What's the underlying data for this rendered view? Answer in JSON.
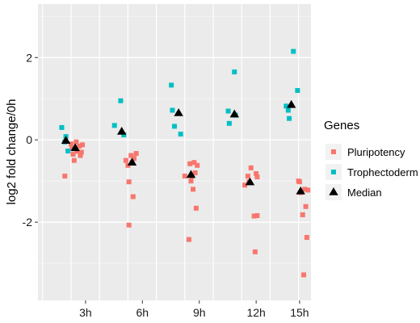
{
  "chart_data": {
    "type": "scatter",
    "ylabel": "log2 fold change/0h",
    "xlabel": "",
    "categories": [
      "3h",
      "6h",
      "9h",
      "12h",
      "15h"
    ],
    "x_tick_labels": [
      "3h",
      "6h",
      "9h",
      "12h",
      "15h"
    ],
    "y_ticks": [
      -2,
      0,
      2
    ],
    "y_tick_labels": [
      "-2",
      "0",
      "2"
    ],
    "ylim": [
      -3.9,
      3.3
    ],
    "xlim": [
      0.4,
      13.6
    ],
    "grid": true,
    "legend": {
      "title": "Genes",
      "position": "right",
      "entries": [
        {
          "label": "Pluripotency",
          "color": "#F8766D",
          "shape": "square"
        },
        {
          "label": "Trophectoderm",
          "color": "#00BFC4",
          "shape": "square"
        },
        {
          "label": "Median",
          "color": "#000000",
          "shape": "triangle"
        }
      ]
    },
    "series": [
      {
        "name": "Pluripotency",
        "color": "#F8766D",
        "shape": "square",
        "points": [
          {
            "x": 1.7,
            "y": -0.88
          },
          {
            "x": 2.0,
            "y": -0.1
          },
          {
            "x": 2.05,
            "y": -0.2
          },
          {
            "x": 2.1,
            "y": -0.35
          },
          {
            "x": 2.15,
            "y": -0.5
          },
          {
            "x": 2.25,
            "y": -0.05
          },
          {
            "x": 2.3,
            "y": -0.28
          },
          {
            "x": 2.4,
            "y": -0.15
          },
          {
            "x": 2.45,
            "y": -0.38
          },
          {
            "x": 2.5,
            "y": -0.3
          },
          {
            "x": 2.55,
            "y": -0.12
          },
          {
            "x": 4.65,
            "y": -0.5
          },
          {
            "x": 4.75,
            "y": -0.62
          },
          {
            "x": 4.8,
            "y": -1.02
          },
          {
            "x": 4.8,
            "y": -2.07
          },
          {
            "x": 4.9,
            "y": -0.38
          },
          {
            "x": 4.95,
            "y": -0.55
          },
          {
            "x": 5.0,
            "y": -1.38
          },
          {
            "x": 5.05,
            "y": -0.45
          },
          {
            "x": 5.15,
            "y": -0.33
          },
          {
            "x": 7.5,
            "y": -0.88
          },
          {
            "x": 7.7,
            "y": -2.42
          },
          {
            "x": 7.75,
            "y": -0.58
          },
          {
            "x": 7.8,
            "y": -1.0
          },
          {
            "x": 7.85,
            "y": -0.88
          },
          {
            "x": 7.9,
            "y": -1.2
          },
          {
            "x": 7.95,
            "y": -0.55
          },
          {
            "x": 8.0,
            "y": -0.8
          },
          {
            "x": 8.05,
            "y": -1.66
          },
          {
            "x": 8.1,
            "y": -0.62
          },
          {
            "x": 10.4,
            "y": -1.1
          },
          {
            "x": 10.55,
            "y": -0.88
          },
          {
            "x": 10.6,
            "y": -1.02
          },
          {
            "x": 10.7,
            "y": -0.68
          },
          {
            "x": 10.85,
            "y": -1.85
          },
          {
            "x": 10.9,
            "y": -2.72
          },
          {
            "x": 10.95,
            "y": -0.82
          },
          {
            "x": 11.0,
            "y": -0.9
          },
          {
            "x": 11.0,
            "y": -1.84
          },
          {
            "x": 13.0,
            "y": -1.0
          },
          {
            "x": 13.05,
            "y": -1.02
          },
          {
            "x": 13.1,
            "y": -1.28
          },
          {
            "x": 13.2,
            "y": -1.82
          },
          {
            "x": 13.25,
            "y": -3.28
          },
          {
            "x": 13.3,
            "y": -1.2
          },
          {
            "x": 13.35,
            "y": -1.62
          },
          {
            "x": 13.4,
            "y": -2.37
          },
          {
            "x": 13.45,
            "y": -1.22
          }
        ]
      },
      {
        "name": "Trophectoderm",
        "color": "#00BFC4",
        "shape": "square",
        "points": [
          {
            "x": 1.55,
            "y": 0.3
          },
          {
            "x": 1.7,
            "y": -0.05
          },
          {
            "x": 1.75,
            "y": 0.08
          },
          {
            "x": 1.85,
            "y": -0.27
          },
          {
            "x": 4.1,
            "y": 0.35
          },
          {
            "x": 4.4,
            "y": 0.95
          },
          {
            "x": 4.55,
            "y": 0.12
          },
          {
            "x": 6.85,
            "y": 1.33
          },
          {
            "x": 6.9,
            "y": 0.72
          },
          {
            "x": 7.0,
            "y": 0.33
          },
          {
            "x": 7.3,
            "y": 0.14
          },
          {
            "x": 9.6,
            "y": 0.7
          },
          {
            "x": 9.65,
            "y": 0.4
          },
          {
            "x": 9.9,
            "y": 1.65
          },
          {
            "x": 9.95,
            "y": 0.6
          },
          {
            "x": 12.4,
            "y": 0.82
          },
          {
            "x": 12.5,
            "y": 0.72
          },
          {
            "x": 12.55,
            "y": 0.52
          },
          {
            "x": 12.75,
            "y": 2.15
          },
          {
            "x": 12.95,
            "y": 1.2
          }
        ]
      },
      {
        "name": "Median",
        "color": "#000000",
        "shape": "triangle",
        "points": [
          {
            "x": 1.75,
            "y": -0.02
          },
          {
            "x": 2.2,
            "y": -0.2
          },
          {
            "x": 4.45,
            "y": 0.2
          },
          {
            "x": 4.95,
            "y": -0.55
          },
          {
            "x": 7.2,
            "y": 0.65
          },
          {
            "x": 7.8,
            "y": -0.85
          },
          {
            "x": 9.9,
            "y": 0.62
          },
          {
            "x": 10.65,
            "y": -1.03
          },
          {
            "x": 12.65,
            "y": 0.85
          },
          {
            "x": 13.1,
            "y": -1.25
          }
        ]
      }
    ]
  }
}
